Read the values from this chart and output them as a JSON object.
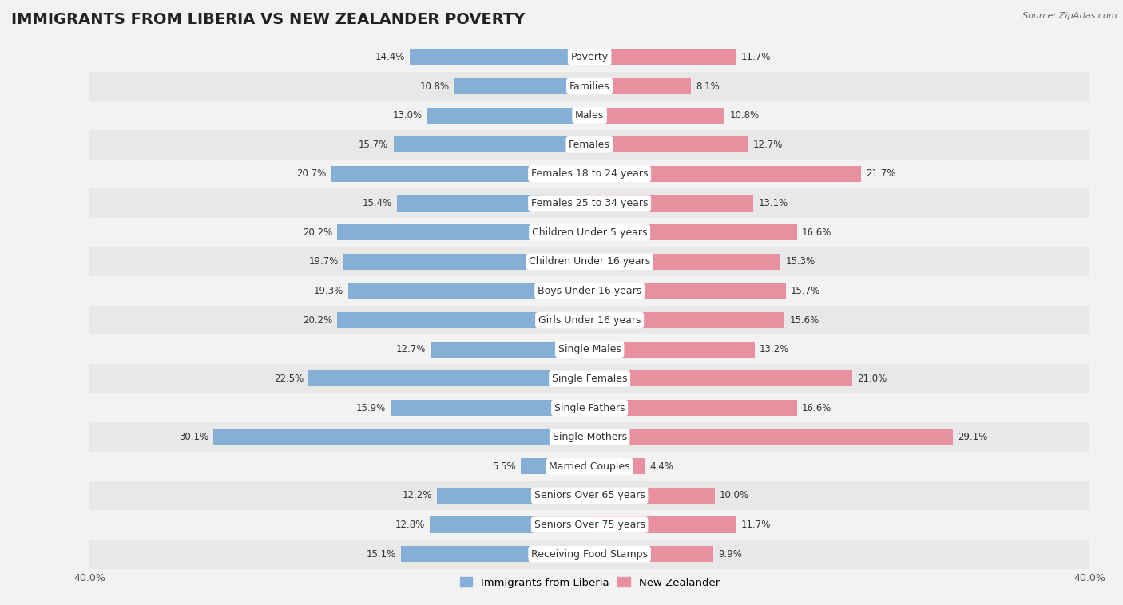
{
  "title": "IMMIGRANTS FROM LIBERIA VS NEW ZEALANDER POVERTY",
  "source": "Source: ZipAtlas.com",
  "categories": [
    "Poverty",
    "Families",
    "Males",
    "Females",
    "Females 18 to 24 years",
    "Females 25 to 34 years",
    "Children Under 5 years",
    "Children Under 16 years",
    "Boys Under 16 years",
    "Girls Under 16 years",
    "Single Males",
    "Single Females",
    "Single Fathers",
    "Single Mothers",
    "Married Couples",
    "Seniors Over 65 years",
    "Seniors Over 75 years",
    "Receiving Food Stamps"
  ],
  "liberia_values": [
    14.4,
    10.8,
    13.0,
    15.7,
    20.7,
    15.4,
    20.2,
    19.7,
    19.3,
    20.2,
    12.7,
    22.5,
    15.9,
    30.1,
    5.5,
    12.2,
    12.8,
    15.1
  ],
  "nz_values": [
    11.7,
    8.1,
    10.8,
    12.7,
    21.7,
    13.1,
    16.6,
    15.3,
    15.7,
    15.6,
    13.2,
    21.0,
    16.6,
    29.1,
    4.4,
    10.0,
    11.7,
    9.9
  ],
  "liberia_color": "#85afd4",
  "nz_color": "#e88fa0",
  "liberia_label": "Immigrants from Liberia",
  "nz_label": "New Zealander",
  "xlim": 40.0,
  "background_color": "#f2f2f2",
  "row_alt_color": "#e8e8e8",
  "row_base_color": "#f2f2f2",
  "bar_height": 0.55,
  "title_fontsize": 14,
  "label_fontsize": 9,
  "value_fontsize": 8.5,
  "axis_label_fontsize": 9,
  "axis_tick_color": "#555555"
}
